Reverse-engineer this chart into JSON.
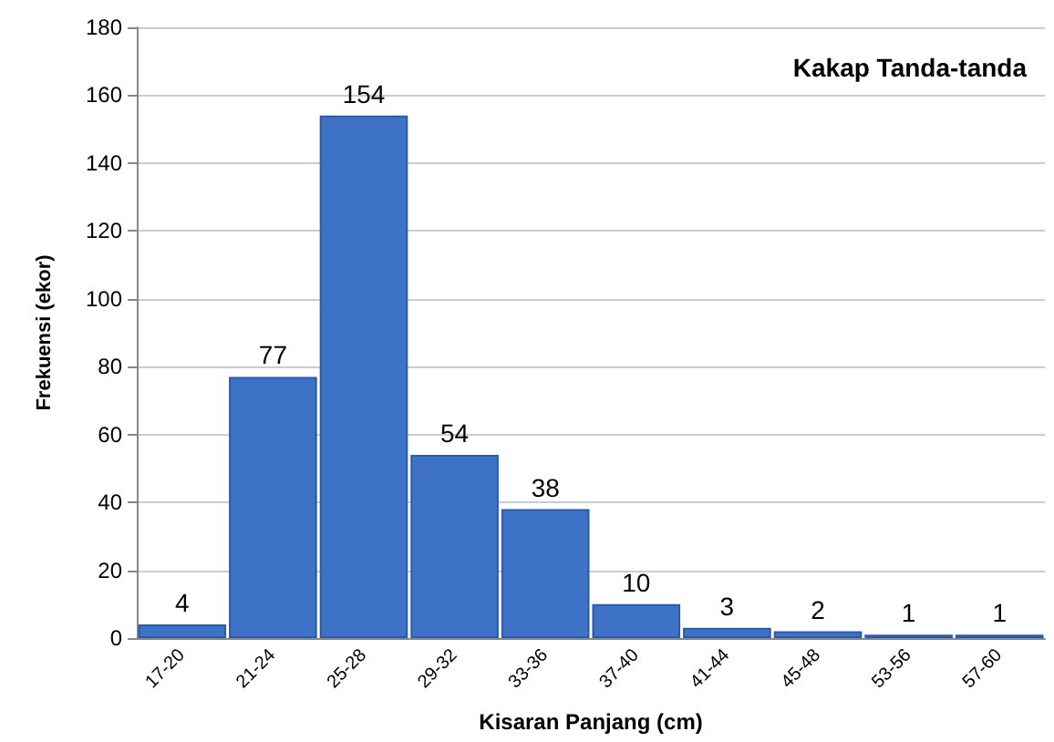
{
  "chart_data": {
    "type": "bar",
    "title": "Kakap Tanda-tanda",
    "xlabel": "Kisaran Panjang (cm)",
    "ylabel": "Frekuensi (ekor)",
    "categories": [
      "17-20",
      "21-24",
      "25-28",
      "29-32",
      "33-36",
      "37-40",
      "41-44",
      "45-48",
      "53-56",
      "57-60"
    ],
    "values": [
      4,
      77,
      154,
      54,
      38,
      10,
      3,
      2,
      1,
      1
    ],
    "color": "#3d72c6",
    "ylim": [
      0,
      180
    ],
    "yticks": [
      0,
      20,
      40,
      60,
      80,
      100,
      120,
      140,
      160,
      180
    ],
    "grid": "y",
    "data_labels": true
  }
}
